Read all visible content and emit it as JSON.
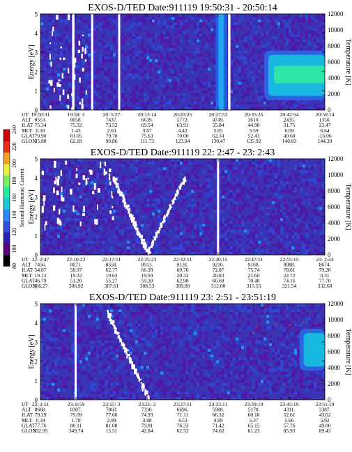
{
  "colorbar": {
    "title": "Second Harmonic Current",
    "ticks": [
      "80",
      "100",
      "120",
      "140",
      "160",
      "180",
      "200",
      "220",
      "240"
    ],
    "colors": [
      "#000000",
      "#5a007a",
      "#2a1fb0",
      "#2f4fe0",
      "#2a88ff",
      "#18c8d8",
      "#22e8a0",
      "#7af060",
      "#e8f040",
      "#f0a020",
      "#e83010",
      "#d00000"
    ]
  },
  "panels": [
    {
      "title": "EXOS-D/TED   Date:911119  19:50:31 - 20:50:14",
      "ylabel": "Energy [eV]",
      "y2label": "Temperature [K]",
      "yticks": [
        "0",
        "1",
        "2",
        "3",
        "4",
        "5"
      ],
      "y2ticks": [
        "0",
        "2000",
        "4000",
        "6000",
        "8000",
        "10000",
        "12000"
      ],
      "eph_labels": [
        "UT",
        "ALT",
        "ILAT",
        "MLT",
        "GLAT",
        "GLON"
      ],
      "eph_cols": [
        [
          "19:50:31",
          "8553.",
          "75.34",
          "0.18",
          "79.90",
          "35.88"
        ],
        [
          "19:58: 3",
          "8058.",
          "75.32",
          "1.43",
          "81.05",
          "62.18"
        ],
        [
          "20: 5:27",
          "7437.",
          "73.52",
          "2.63",
          "79.70",
          "90.86"
        ],
        [
          "20:13:14",
          "6639.",
          "69.54",
          "3.67",
          "75.63",
          "111.73"
        ],
        [
          "20:20:25",
          "5772.",
          "63.91",
          "4.42",
          "70.00",
          "123.04"
        ],
        [
          "20:27:53",
          "4749.",
          "55.84",
          "5.05",
          "62.34",
          "130.47"
        ],
        [
          "20:35:26",
          "3610.",
          "44.98",
          "5.59",
          "52.43",
          "135.92"
        ],
        [
          "20:42:54",
          "2435.",
          "31.75",
          "6.09",
          "40.60",
          "140.83"
        ],
        [
          "20:50:14",
          "1350.",
          "23.47",
          "6.64",
          "-16.06",
          "144.30"
        ]
      ]
    },
    {
      "title": "EXOS-D/TED   Date:911119  22: 2:47 - 23: 2:43",
      "ylabel": "Energy [eV]",
      "y2label": "Temperature [K]",
      "yticks": [
        "0",
        "1",
        "2",
        "3",
        "4",
        "5"
      ],
      "y2ticks": [
        "0",
        "2000",
        "4000",
        "6000",
        "8000",
        "10000",
        "12000"
      ],
      "eph_labels": [
        "UT",
        "ALT",
        "ILAT",
        "MLT",
        "GLAT",
        "GLON"
      ],
      "eph_cols": [
        [
          "22: 2:47",
          "7456.",
          "54.87",
          "19.13",
          "46.79",
          "306.27"
        ],
        [
          "22:10:23",
          "8071.",
          "58.97",
          "19.32",
          "51.20",
          "306.92"
        ],
        [
          "22:17:51",
          "8558.",
          "62.77",
          "19.63",
          "55.27",
          "307.61"
        ],
        [
          "22:25:23",
          "8913.",
          "66.39",
          "19.93",
          "59.20",
          "308.53"
        ],
        [
          "22:32:51",
          "9131.",
          "69.76",
          "20.32",
          "62.98",
          "309.89"
        ],
        [
          "22:40:15",
          "9216.",
          "72.87",
          "20.83",
          "66.68",
          "312.00"
        ],
        [
          "22:47:51",
          "9168.",
          "75.74",
          "21.60",
          "70.48",
          "315.55"
        ],
        [
          "22:55:15",
          "8988.",
          "78.01",
          "22.72",
          "74.16",
          "321.54"
        ],
        [
          "23: 2:43",
          "8674.",
          "79.28",
          "0.31",
          "77.70",
          "332.68"
        ]
      ]
    },
    {
      "title": "EXOS-D/TED   Date:911119  23: 2:51 - 23:51:19",
      "ylabel": "Energy [eV]",
      "y2label": "Temperature [K]",
      "yticks": [
        "0",
        "1",
        "2",
        "3",
        "4",
        "5"
      ],
      "y2ticks": [
        "0",
        "2000",
        "4000",
        "6000",
        "8000",
        "10000",
        "12000"
      ],
      "eph_labels": [
        "UT",
        "ALT",
        "ILAT",
        "MLT",
        "GLAT",
        "GLON"
      ],
      "eph_cols": [
        [
          "23: 2:51",
          "8668.",
          "79.29",
          "0.34",
          "77.76",
          "332.95"
        ],
        [
          "23: 8:59",
          "8307.",
          "79.09",
          "1.78",
          "80.11",
          "349.74"
        ],
        [
          "23:15: 3",
          "7860.",
          "77.60",
          "2.99",
          "81.08",
          "15.51"
        ],
        [
          "23:21: 3",
          "7330.",
          "74.93",
          "3.88",
          "79.81",
          "42.84"
        ],
        [
          "23:27:11",
          "6696.",
          "71.11",
          "4.53",
          "76.33",
          "62.52"
        ],
        [
          "23:33:11",
          "5988.",
          "66.32",
          "4.99",
          "71.42",
          "74.02"
        ],
        [
          "23:39:19",
          "5178.",
          "60.18",
          "5.37",
          "65.15",
          "81.23"
        ],
        [
          "23:45:19",
          "4311.",
          "52.61",
          "5.66",
          "57.76",
          "85.93"
        ],
        [
          "23:51:19",
          "3387.",
          "43.02",
          "5.92",
          "49.00",
          "89.43"
        ]
      ]
    }
  ],
  "chart_data": [
    {
      "type": "heatmap",
      "title": "EXOS-D/TED   Date:911119  19:50:31 - 20:50:14",
      "ylabel": "Energy [eV]",
      "y2label": "Temperature [K]",
      "ylim": [
        0,
        5
      ],
      "y2lim": [
        0,
        12000
      ],
      "x_ticks": [
        "19:50:31",
        "19:58: 3",
        "20: 5:27",
        "20:13:14",
        "20:20:25",
        "20:27:53",
        "20:35:26",
        "20:42:54",
        "20:50:14"
      ],
      "colorbar_label": "Second Harmonic Current",
      "colorbar_range": [
        80,
        240
      ],
      "features": [
        {
          "name": "data gap",
          "x_from": "19:57:10",
          "x_to": "19:57:40"
        },
        {
          "name": "data gap",
          "x_from": "20: 1:10",
          "x_to": "20: 1:35"
        },
        {
          "name": "data gap",
          "x_from": "20: 6:50",
          "x_to": "20: 7:15"
        },
        {
          "name": "data gap",
          "x_from": "20:29:55",
          "x_to": "20:30:25"
        },
        {
          "name": "enhanced band",
          "x_from": "20:27:20",
          "x_to": "20:29:40",
          "y_from": 0,
          "y_to": 5,
          "value": 180
        },
        {
          "name": "warm region",
          "x_from": "20:37:30",
          "x_to": "20:50:14",
          "y_from": 0.8,
          "y_to": 2.8,
          "value": 190
        }
      ]
    },
    {
      "type": "heatmap",
      "title": "EXOS-D/TED   Date:911119  22: 2:47 - 23: 2:43",
      "ylabel": "Energy [eV]",
      "y2label": "Temperature [K]",
      "ylim": [
        0,
        5
      ],
      "y2lim": [
        0,
        12000
      ],
      "x_ticks": [
        "22: 2:47",
        "22:10:23",
        "22:17:51",
        "22:25:23",
        "22:32:51",
        "22:40:15",
        "22:47:51",
        "22:55:15",
        "23: 2:43"
      ],
      "colorbar_label": "Second Harmonic Current",
      "colorbar_range": [
        80,
        240
      ],
      "features": [
        {
          "name": "data gap",
          "x_from": "22:40:00",
          "x_to": "22:40:20"
        },
        {
          "name": "V-shaped dispersion",
          "x_from": "22:18:00",
          "x_to": "22:33:00",
          "y_min": 0.1,
          "y_max": 4.0
        },
        {
          "name": "scattered dropouts",
          "x_from": "22: 3:00",
          "x_to": "22:18:00",
          "y_from": 1.5,
          "y_to": 5
        }
      ]
    },
    {
      "type": "heatmap",
      "title": "EXOS-D/TED   Date:911119  23: 2:51 - 23:51:19",
      "ylabel": "Energy [eV]",
      "y2label": "Temperature [K]",
      "ylim": [
        0,
        5
      ],
      "y2lim": [
        0,
        12000
      ],
      "x_ticks": [
        "23: 2:51",
        "23: 8:59",
        "23:15: 3",
        "23:21: 3",
        "23:27:11",
        "23:33:11",
        "23:39:19",
        "23:45:19",
        "23:51:19"
      ],
      "colorbar_label": "Second Harmonic Current",
      "colorbar_range": [
        80,
        240
      ],
      "features": [
        {
          "name": "data gap",
          "x_from": "23: 8:40",
          "x_to": "23: 9:00"
        },
        {
          "name": "dispersion streak",
          "x_from": "23:14:00",
          "x_to": "23:21:00",
          "y_min": 0.1,
          "y_max": 4.6
        },
        {
          "name": "warm region",
          "x_from": "23:47:00",
          "x_to": "23:51:19",
          "y_from": 1.8,
          "y_to": 3.4,
          "value": 170
        }
      ]
    }
  ]
}
